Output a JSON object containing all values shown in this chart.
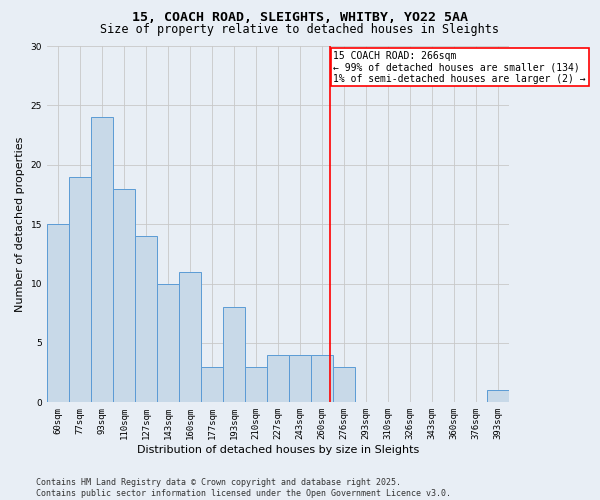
{
  "title_line1": "15, COACH ROAD, SLEIGHTS, WHITBY, YO22 5AA",
  "title_line2": "Size of property relative to detached houses in Sleights",
  "xlabel": "Distribution of detached houses by size in Sleights",
  "ylabel": "Number of detached properties",
  "bin_labels": [
    "60sqm",
    "77sqm",
    "93sqm",
    "110sqm",
    "127sqm",
    "143sqm",
    "160sqm",
    "177sqm",
    "193sqm",
    "210sqm",
    "227sqm",
    "243sqm",
    "260sqm",
    "276sqm",
    "293sqm",
    "310sqm",
    "326sqm",
    "343sqm",
    "360sqm",
    "376sqm",
    "393sqm"
  ],
  "values": [
    15,
    19,
    24,
    18,
    14,
    10,
    11,
    3,
    8,
    3,
    4,
    4,
    4,
    3,
    0,
    0,
    0,
    0,
    0,
    0,
    1
  ],
  "bar_color": "#c8d9e8",
  "bar_edge_color": "#5b9bd5",
  "bar_linewidth": 0.7,
  "grid_color": "#c8c8c8",
  "background_color": "#e8eef5",
  "ylim": [
    0,
    30
  ],
  "yticks": [
    0,
    5,
    10,
    15,
    20,
    25,
    30
  ],
  "property_line_color": "red",
  "annotation_title": "15 COACH ROAD: 266sqm",
  "annotation_line2": "← 99% of detached houses are smaller (134)",
  "annotation_line3": "1% of semi-detached houses are larger (2) →",
  "annotation_box_color": "white",
  "annotation_box_edge": "red",
  "footer_line1": "Contains HM Land Registry data © Crown copyright and database right 2025.",
  "footer_line2": "Contains public sector information licensed under the Open Government Licence v3.0.",
  "title_fontsize": 9.5,
  "subtitle_fontsize": 8.5,
  "axis_label_fontsize": 8,
  "tick_fontsize": 6.5,
  "annotation_fontsize": 7,
  "footer_fontsize": 6
}
